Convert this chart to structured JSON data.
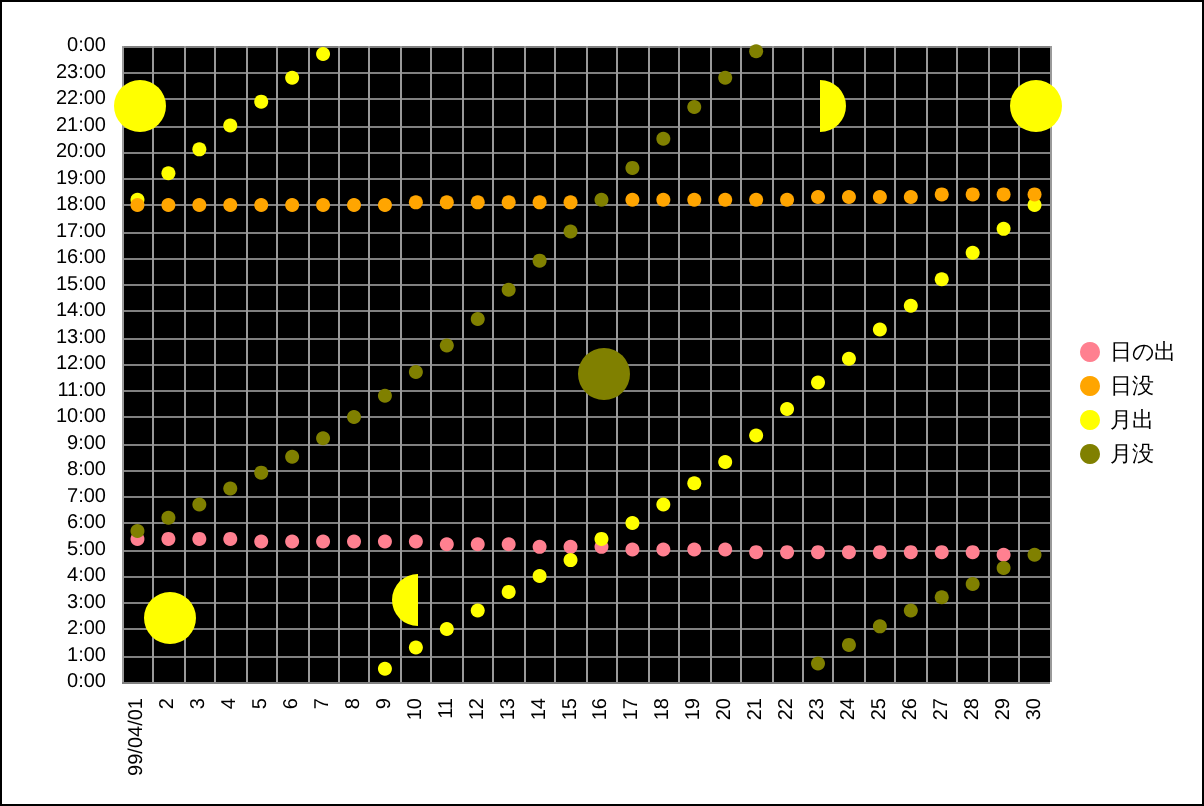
{
  "chart_data": {
    "type": "scatter",
    "categories": [
      "99/04/01",
      "2",
      "3",
      "4",
      "5",
      "6",
      "7",
      "8",
      "9",
      "10",
      "11",
      "12",
      "13",
      "14",
      "15",
      "16",
      "17",
      "18",
      "19",
      "20",
      "21",
      "22",
      "23",
      "24",
      "25",
      "26",
      "27",
      "28",
      "29",
      "30"
    ],
    "series": [
      {
        "name": "日の出",
        "color": "#ff8090",
        "values": [
          5.4,
          5.4,
          5.4,
          5.4,
          5.3,
          5.3,
          5.3,
          5.3,
          5.3,
          5.3,
          5.2,
          5.2,
          5.2,
          5.1,
          5.1,
          5.1,
          5.0,
          5.0,
          5.0,
          5.0,
          4.9,
          4.9,
          4.9,
          4.9,
          4.9,
          4.9,
          4.9,
          4.9,
          4.8,
          null
        ]
      },
      {
        "name": "日没",
        "color": "#ffa500",
        "values": [
          18.0,
          18.0,
          18.0,
          18.0,
          18.0,
          18.0,
          18.0,
          18.0,
          18.0,
          18.1,
          18.1,
          18.1,
          18.1,
          18.1,
          18.1,
          null,
          18.2,
          18.2,
          18.2,
          18.2,
          18.2,
          18.2,
          18.3,
          18.3,
          18.3,
          18.3,
          18.4,
          18.4,
          18.4,
          18.4
        ]
      },
      {
        "name": "月出",
        "color": "#ffff00",
        "values": [
          18.2,
          19.2,
          20.1,
          21.0,
          21.9,
          22.8,
          23.7,
          null,
          0.5,
          1.3,
          2.0,
          2.7,
          3.4,
          4.0,
          4.6,
          5.4,
          6.0,
          6.7,
          7.5,
          8.3,
          9.3,
          10.3,
          11.3,
          12.2,
          13.3,
          14.2,
          15.2,
          16.2,
          17.1,
          18.0
        ]
      },
      {
        "name": "月没",
        "color": "#808000",
        "values": [
          5.7,
          6.2,
          6.7,
          7.3,
          7.9,
          8.5,
          9.2,
          10.0,
          10.8,
          11.7,
          12.7,
          13.7,
          14.8,
          15.9,
          17.0,
          18.2,
          19.4,
          20.5,
          21.7,
          22.8,
          23.8,
          null,
          0.7,
          1.4,
          2.1,
          2.7,
          3.2,
          3.7,
          4.3,
          4.8
        ]
      }
    ],
    "ylim": [
      0,
      24
    ],
    "yticks": [
      {
        "value": 0,
        "label": "0:00"
      },
      {
        "value": 1,
        "label": "1:00"
      },
      {
        "value": 2,
        "label": "2:00"
      },
      {
        "value": 3,
        "label": "3:00"
      },
      {
        "value": 4,
        "label": "4:00"
      },
      {
        "value": 5,
        "label": "5:00"
      },
      {
        "value": 6,
        "label": "6:00"
      },
      {
        "value": 7,
        "label": "7:00"
      },
      {
        "value": 8,
        "label": "8:00"
      },
      {
        "value": 9,
        "label": "9:00"
      },
      {
        "value": 10,
        "label": "10:00"
      },
      {
        "value": 11,
        "label": "11:00"
      },
      {
        "value": 12,
        "label": "12:00"
      },
      {
        "value": 13,
        "label": "13:00"
      },
      {
        "value": 14,
        "label": "14:00"
      },
      {
        "value": 15,
        "label": "15:00"
      },
      {
        "value": 16,
        "label": "16:00"
      },
      {
        "value": 17,
        "label": "17:00"
      },
      {
        "value": 18,
        "label": "18:00"
      },
      {
        "value": 19,
        "label": "19:00"
      },
      {
        "value": 20,
        "label": "20:00"
      },
      {
        "value": 21,
        "label": "21:00"
      },
      {
        "value": 22,
        "label": "22:00"
      },
      {
        "value": 23,
        "label": "23:00"
      },
      {
        "value": 24,
        "label": "0:00"
      }
    ],
    "grid": true,
    "legend": "right",
    "marker": "circle"
  }
}
